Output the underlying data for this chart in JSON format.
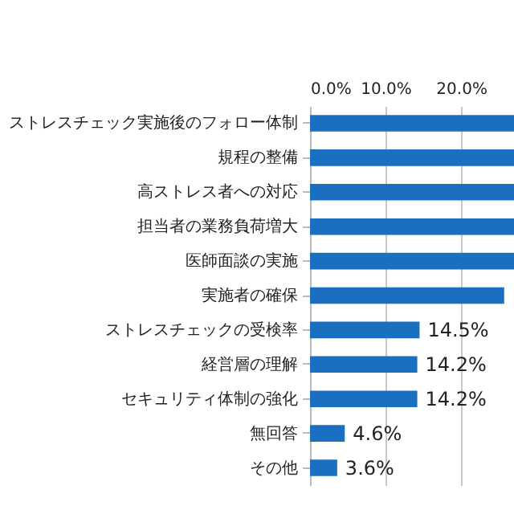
{
  "chart_data": {
    "type": "bar",
    "orientation": "horizontal",
    "categories": [
      "ストレスチェック実施後のフォロー体制",
      "規程の整備",
      "高ストレス者への対応",
      "担当者の業務負荷増大",
      "医師面談の実施",
      "実施者の確保",
      "ストレスチェックの受検率",
      "経営層の理解",
      "セキュリティ体制の強化",
      "無回答",
      "その他"
    ],
    "values": [
      27,
      27,
      27,
      27,
      27,
      25.7,
      14.5,
      14.2,
      14.2,
      4.6,
      3.6
    ],
    "value_labels": [
      null,
      null,
      null,
      null,
      null,
      null,
      "14.5%",
      "14.2%",
      "14.2%",
      "4.6%",
      "3.6%"
    ],
    "color": "#1a6fc0",
    "xlim": [
      0,
      27
    ],
    "xticks": [
      {
        "value": 0,
        "label": "0.0%"
      },
      {
        "value": 10,
        "label": "10.0%"
      },
      {
        "value": 20,
        "label": "20.0%"
      }
    ],
    "grid": "x"
  }
}
